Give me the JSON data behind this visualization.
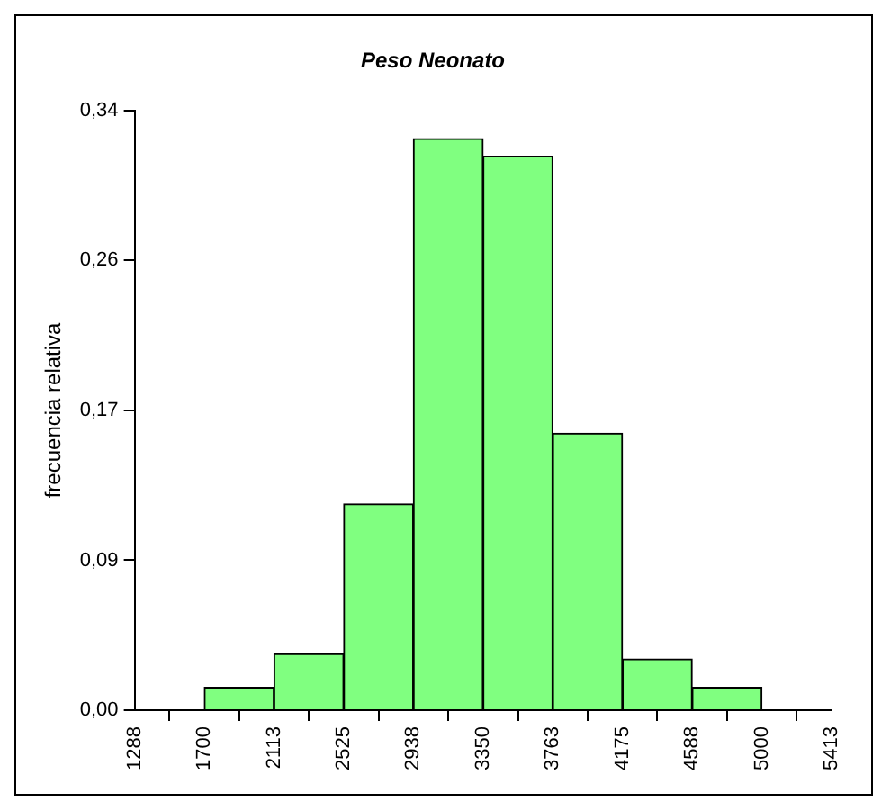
{
  "chart_data": {
    "type": "histogram",
    "title": "Peso Neonato",
    "ylabel": "frecuencia relativa",
    "bins": [
      1700,
      2112.5,
      2525,
      2937.5,
      3350,
      3762.5,
      4175,
      4587.5,
      5000
    ],
    "values": [
      0.013,
      0.032,
      0.117,
      0.324,
      0.314,
      0.157,
      0.029,
      0.013
    ],
    "color": "#80ff80",
    "xlim": [
      1287.5,
      5412.5
    ],
    "xticks": [
      {
        "value": 1287.5,
        "label": "1288"
      },
      1700,
      {
        "value": 2112.5,
        "label": "2113"
      },
      2525,
      {
        "value": 2937.5,
        "label": "2938"
      },
      3350,
      {
        "value": 3762.5,
        "label": "3763"
      },
      4175,
      {
        "value": 4587.5,
        "label": "4588"
      },
      5000,
      {
        "value": 5412.5,
        "label": "5413"
      }
    ],
    "ylim": [
      0,
      0.34
    ],
    "yticks": [
      {
        "value": 0,
        "label": "0,00"
      },
      {
        "value": 0.085,
        "label": "0,09"
      },
      {
        "value": 0.17,
        "label": "0,17"
      },
      {
        "value": 0.255,
        "label": "0,26"
      },
      {
        "value": 0.34,
        "label": "0,34"
      }
    ],
    "grid": false,
    "legend": false
  }
}
